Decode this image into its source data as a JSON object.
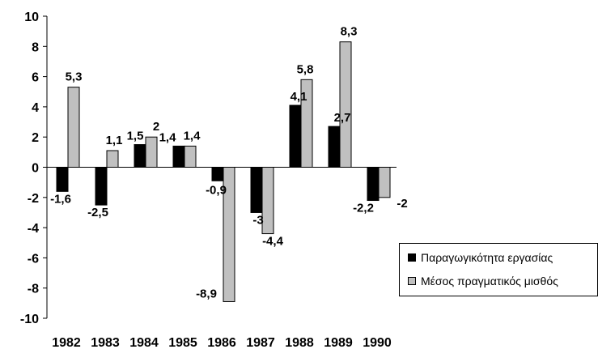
{
  "chart_data": {
    "type": "bar",
    "categories": [
      "1982",
      "1983",
      "1984",
      "1985",
      "1986",
      "1987",
      "1988",
      "1989",
      "1990"
    ],
    "series": [
      {
        "name": "Παραγωγικότητα εργασίας",
        "color": "#000000",
        "values": [
          -1.6,
          -2.5,
          1.5,
          1.4,
          -0.9,
          -3,
          4.1,
          2.7,
          -2.2
        ],
        "labels": [
          "-1,6",
          "-2,5",
          "1,5",
          "1,4",
          "-0,9",
          "-3",
          "4,1",
          "2,7",
          "-2,2"
        ]
      },
      {
        "name": "Μέσος πραγματικός μισθός",
        "color": "#c0c0c0",
        "values": [
          5.3,
          1.1,
          2,
          1.4,
          -8.9,
          -4.4,
          5.8,
          8.3,
          -2
        ],
        "labels": [
          "5,3",
          "1,1",
          "2",
          "1,4",
          "-8,9",
          "-4,4",
          "5,8",
          "8,3",
          "-2"
        ]
      }
    ],
    "ylim": [
      -10,
      10
    ],
    "yticks": [
      10,
      8,
      6,
      4,
      2,
      0,
      -2,
      -4,
      -6,
      -8,
      -10
    ],
    "grid": false,
    "legend_position": "right"
  }
}
